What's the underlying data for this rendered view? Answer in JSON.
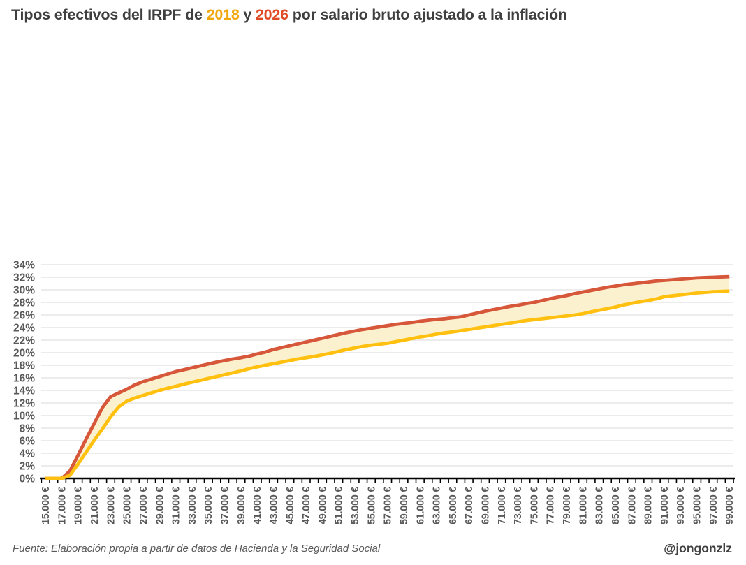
{
  "title": {
    "prefix": "Tipos efectivos del IRPF de ",
    "year_2018": "2018",
    "middle": " y ",
    "year_2026": "2026",
    "suffix": " por salario bruto ajustado a la inflación"
  },
  "footer": {
    "source": "Fuente: Elaboración propia a partir de datos de Hacienda y la Seguridad Social",
    "credit": "@jongonzlz"
  },
  "colors": {
    "title_text": "#3f3f3f",
    "gold": "#F2A80D",
    "red": "#E04B26",
    "line_2018": "#FFC010",
    "line_2026": "#D6573A",
    "fill_between": "#FCF1CE",
    "gridline": "#D9D9D9",
    "axis": "#000000",
    "axis_label": "#595959"
  },
  "chart_data": {
    "type": "line",
    "title": "Tipos efectivos del IRPF de 2018 y 2026 por salario bruto ajustado a la inflación",
    "xlabel": "",
    "ylabel": "",
    "x_start": 15000,
    "x_step": 1000,
    "x_end": 99000,
    "ylim": [
      0,
      34
    ],
    "y_step": 2,
    "grid": "horizontal",
    "legend_position": "in-title",
    "fill_between_series": true,
    "x_tick_labels": [
      "15.000 €",
      "17.000 €",
      "19.000 €",
      "21.000 €",
      "23.000 €",
      "25.000 €",
      "27.000 €",
      "29.000 €",
      "31.000 €",
      "33.000 €",
      "35.000 €",
      "37.000 €",
      "39.000 €",
      "41.000 €",
      "43.000 €",
      "45.000 €",
      "47.000 €",
      "49.000 €",
      "51.000 €",
      "53.000 €",
      "55.000 €",
      "57.000 €",
      "59.000 €",
      "61.000 €",
      "63.000 €",
      "65.000 €",
      "67.000 €",
      "69.000 €",
      "71.000 €",
      "73.000 €",
      "75.000 €",
      "77.000 €",
      "79.000 €",
      "81.000 €",
      "83.000 €",
      "85.000 €",
      "87.000 €",
      "89.000 €",
      "91.000 €",
      "93.000 €",
      "95.000 €",
      "97.000 €",
      "99.000 €"
    ],
    "y_tick_labels": [
      "0%",
      "2%",
      "4%",
      "6%",
      "8%",
      "10%",
      "12%",
      "14%",
      "16%",
      "18%",
      "20%",
      "22%",
      "24%",
      "26%",
      "28%",
      "30%",
      "32%",
      "34%"
    ],
    "series": [
      {
        "name": "2018",
        "color": "#FFC010",
        "values": [
          0,
          0,
          0,
          0.5,
          2.3,
          4.2,
          6.1,
          7.9,
          9.8,
          11.4,
          12.3,
          12.8,
          13.2,
          13.6,
          14.0,
          14.35,
          14.65,
          15.0,
          15.3,
          15.6,
          15.9,
          16.2,
          16.5,
          16.8,
          17.1,
          17.45,
          17.75,
          18.0,
          18.25,
          18.5,
          18.75,
          19.0,
          19.2,
          19.4,
          19.65,
          19.9,
          20.2,
          20.5,
          20.75,
          21.0,
          21.2,
          21.35,
          21.5,
          21.75,
          22.0,
          22.25,
          22.5,
          22.7,
          22.95,
          23.15,
          23.3,
          23.5,
          23.7,
          23.9,
          24.1,
          24.3,
          24.5,
          24.7,
          24.9,
          25.1,
          25.25,
          25.4,
          25.55,
          25.7,
          25.85,
          26.0,
          26.2,
          26.5,
          26.75,
          27.0,
          27.25,
          27.6,
          27.85,
          28.1,
          28.3,
          28.55,
          28.9,
          29.05,
          29.2,
          29.35,
          29.5,
          29.6,
          29.7,
          29.75,
          29.8
        ]
      },
      {
        "name": "2026",
        "color": "#D6573A",
        "values": [
          0,
          0,
          0,
          1.2,
          3.7,
          6.3,
          8.8,
          11.3,
          13.0,
          13.6,
          14.2,
          14.9,
          15.4,
          15.8,
          16.2,
          16.6,
          17.0,
          17.3,
          17.6,
          17.9,
          18.2,
          18.5,
          18.75,
          19.0,
          19.2,
          19.45,
          19.8,
          20.1,
          20.5,
          20.8,
          21.1,
          21.4,
          21.7,
          22.0,
          22.3,
          22.6,
          22.9,
          23.2,
          23.45,
          23.7,
          23.9,
          24.1,
          24.3,
          24.5,
          24.65,
          24.8,
          25.0,
          25.15,
          25.3,
          25.4,
          25.55,
          25.7,
          26.0,
          26.3,
          26.6,
          26.85,
          27.1,
          27.35,
          27.55,
          27.8,
          28.0,
          28.3,
          28.6,
          28.85,
          29.1,
          29.4,
          29.65,
          29.9,
          30.15,
          30.4,
          30.6,
          30.8,
          30.95,
          31.1,
          31.25,
          31.4,
          31.5,
          31.6,
          31.7,
          31.8,
          31.9,
          31.95,
          32.0,
          32.05,
          32.1
        ]
      }
    ]
  }
}
